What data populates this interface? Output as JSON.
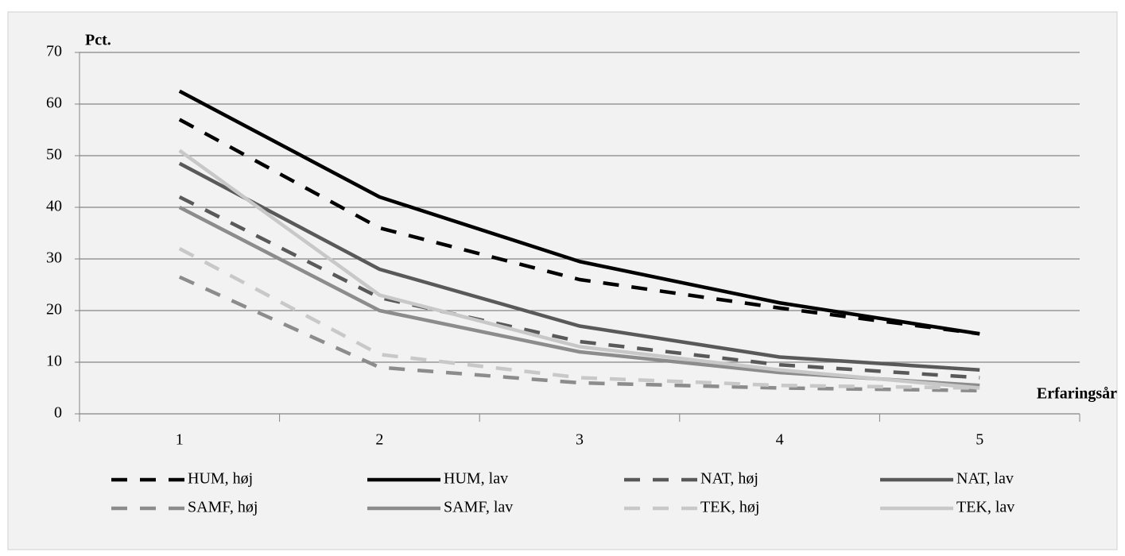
{
  "chart_data": {
    "type": "line",
    "y_label": "Pct.",
    "x_label": "Erfaringsår",
    "categories": [
      "1",
      "2",
      "3",
      "4",
      "5"
    ],
    "ylim": [
      0,
      70
    ],
    "yticks": [
      0,
      10,
      20,
      30,
      40,
      50,
      60,
      70
    ],
    "grid": true,
    "legend": "bottom",
    "series": [
      {
        "name": "HUM, høj",
        "color": "#000000",
        "dashed": true,
        "values": [
          57,
          36,
          26,
          20.5,
          15.5
        ]
      },
      {
        "name": "HUM, lav",
        "color": "#000000",
        "dashed": false,
        "values": [
          62.5,
          42,
          29.5,
          21.5,
          15.5
        ]
      },
      {
        "name": "NAT, høj",
        "color": "#595959",
        "dashed": true,
        "values": [
          42,
          22.5,
          14,
          9.5,
          7
        ]
      },
      {
        "name": "NAT, lav",
        "color": "#595959",
        "dashed": false,
        "values": [
          48.5,
          28,
          17,
          11,
          8.5
        ]
      },
      {
        "name": "SAMF, høj",
        "color": "#8c8c8c",
        "dashed": true,
        "values": [
          26.5,
          9,
          6,
          5,
          4.5
        ]
      },
      {
        "name": "SAMF, lav",
        "color": "#8c8c8c",
        "dashed": false,
        "values": [
          40,
          20,
          12,
          8,
          5.5
        ]
      },
      {
        "name": "TEK, høj",
        "color": "#c8c8c8",
        "dashed": true,
        "values": [
          32,
          11.5,
          7,
          5.5,
          5
        ]
      },
      {
        "name": "TEK, lav",
        "color": "#c8c8c8",
        "dashed": false,
        "values": [
          51,
          23,
          13,
          8.5,
          5
        ]
      }
    ]
  }
}
